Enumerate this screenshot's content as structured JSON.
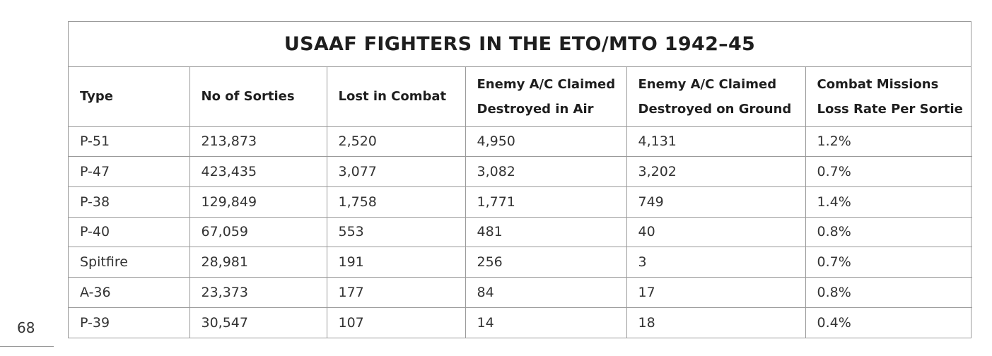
{
  "title": "USAAF FIGHTERS IN THE ETO/MTO 1942–45",
  "page_number": "68",
  "headers": [
    [
      "Type"
    ],
    [
      "No of Sorties"
    ],
    [
      "Lost in Combat"
    ],
    [
      "Enemy A/C Claimed",
      "Destroyed in Air"
    ],
    [
      "Enemy A/C Claimed",
      "Destroyed on Ground"
    ],
    [
      "Combat Missions",
      "Loss Rate Per Sortie"
    ]
  ],
  "rows": [
    [
      "P-51",
      "213,873",
      "2,520",
      "4,950",
      "4,131",
      "1.2%"
    ],
    [
      "P-47",
      "423,435",
      "3,077",
      "3,082",
      "3,202",
      "0.7%"
    ],
    [
      "P-38",
      "129,849",
      "1,758",
      "1,771",
      "749",
      "1.4%"
    ],
    [
      "P-40",
      "67,059",
      "553",
      "481",
      "40",
      "0.8%"
    ],
    [
      "Spitfire",
      "28,981",
      "191",
      "256",
      "3",
      "0.7%"
    ],
    [
      "A-36",
      "23,373",
      "177",
      "84",
      "17",
      "0.8%"
    ],
    [
      "P-39",
      "30,547",
      "107",
      "14",
      "18",
      "0.4%"
    ]
  ]
}
